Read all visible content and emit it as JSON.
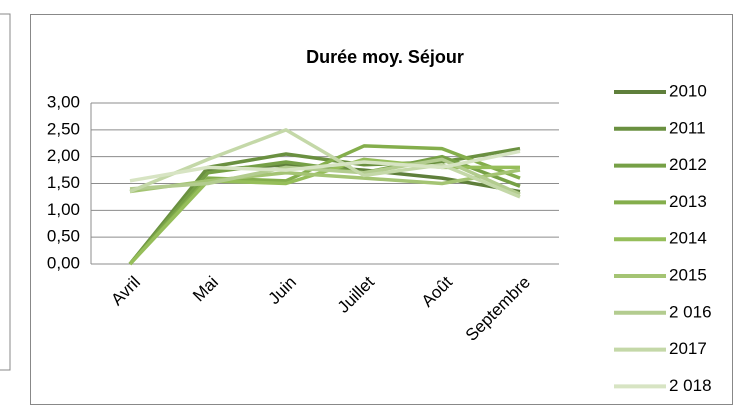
{
  "chart_data": {
    "type": "line",
    "title": "Durée moy. Séjour",
    "categories": [
      "Avril",
      "Mai",
      "Juin",
      "Juillet",
      "Août",
      "Septembre"
    ],
    "series": [
      {
        "name": "2010",
        "color": "#5f7f3b",
        "values": [
          0,
          1.75,
          1.85,
          1.75,
          1.6,
          1.35
        ]
      },
      {
        "name": "2011",
        "color": "#6a9040",
        "values": [
          0,
          1.8,
          2.05,
          1.85,
          1.9,
          2.15
        ]
      },
      {
        "name": "2012",
        "color": "#76a046",
        "values": [
          0,
          1.7,
          1.9,
          1.7,
          2.0,
          1.45
        ]
      },
      {
        "name": "2013",
        "color": "#84ae4c",
        "values": [
          0,
          1.6,
          1.55,
          2.2,
          2.15,
          1.6
        ]
      },
      {
        "name": "2014",
        "color": "#96be5a",
        "values": [
          0,
          1.55,
          1.5,
          1.95,
          1.8,
          1.8
        ]
      },
      {
        "name": "2015",
        "color": "#a4c473",
        "values": [
          1.35,
          1.55,
          1.7,
          1.6,
          1.5,
          1.75
        ]
      },
      {
        "name": "2 016",
        "color": "#b3cc8f",
        "values": [
          1.4,
          1.5,
          1.8,
          1.7,
          1.95,
          1.3
        ]
      },
      {
        "name": "2017",
        "color": "#c4d8a8",
        "values": [
          1.35,
          1.95,
          2.5,
          1.65,
          1.85,
          1.25
        ]
      },
      {
        "name": "2 018",
        "color": "#d7e4c3",
        "values": [
          1.55,
          1.8,
          1.75,
          1.9,
          1.8,
          2.1
        ]
      }
    ],
    "ylim": [
      0,
      3
    ],
    "yticks": [
      {
        "value": 0,
        "label": "0,00"
      },
      {
        "value": 0.5,
        "label": "0,50"
      },
      {
        "value": 1,
        "label": "1,00"
      },
      {
        "value": 1.5,
        "label": "1,50"
      },
      {
        "value": 2,
        "label": "2,00"
      },
      {
        "value": 2.5,
        "label": "2,50"
      },
      {
        "value": 3,
        "label": "3,00"
      }
    ],
    "grid": true,
    "legend": "right"
  }
}
